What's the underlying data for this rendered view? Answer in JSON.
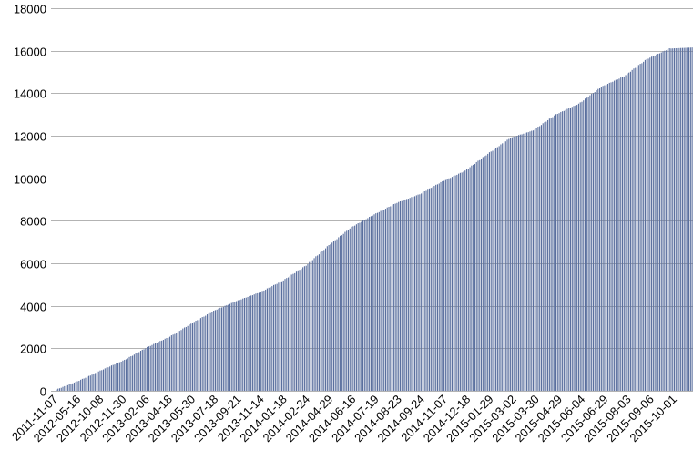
{
  "chart_data": {
    "type": "bar",
    "title": "",
    "xlabel": "",
    "ylabel": "",
    "ylim": [
      0,
      18000
    ],
    "yticks": [
      0,
      2000,
      4000,
      6000,
      8000,
      10000,
      12000,
      14000,
      16000,
      18000
    ],
    "grid": true,
    "legend": "none",
    "bar_color": "#5a6f9e",
    "grid_color": "#b3b3b3",
    "axis_color": "#b3b3b3",
    "tick_labels": [
      "2011-11-07",
      "2012-05-16",
      "2012-10-08",
      "2012-11-30",
      "2013-02-06",
      "2013-04-18",
      "2013-05-30",
      "2013-07-18",
      "2013-09-21",
      "2013-11-14",
      "2014-01-18",
      "2014-02-24",
      "2014-04-29",
      "2014-06-16",
      "2014-07-19",
      "2014-08-23",
      "2014-09-24",
      "2014-11-07",
      "2014-12-18",
      "2015-01-29",
      "2015-03-02",
      "2015-03-30",
      "2015-04-29",
      "2015-06-04",
      "2015-06-29",
      "2015-08-03",
      "2015-09-06",
      "2015-10-01"
    ],
    "series": [
      {
        "anchors": [
          {
            "index": 0,
            "value": 60
          },
          {
            "index": 14,
            "value": 480
          },
          {
            "index": 28,
            "value": 980
          },
          {
            "index": 42,
            "value": 1450
          },
          {
            "index": 56,
            "value": 2050
          },
          {
            "index": 70,
            "value": 2550
          },
          {
            "index": 84,
            "value": 3200
          },
          {
            "index": 98,
            "value": 3800
          },
          {
            "index": 112,
            "value": 4250
          },
          {
            "index": 126,
            "value": 4650
          },
          {
            "index": 140,
            "value": 5200
          },
          {
            "index": 154,
            "value": 5900
          },
          {
            "index": 168,
            "value": 6850
          },
          {
            "index": 182,
            "value": 7700
          },
          {
            "index": 196,
            "value": 8300
          },
          {
            "index": 210,
            "value": 8850
          },
          {
            "index": 224,
            "value": 9250
          },
          {
            "index": 238,
            "value": 9850
          },
          {
            "index": 252,
            "value": 10350
          },
          {
            "index": 266,
            "value": 11150
          },
          {
            "index": 280,
            "value": 11900
          },
          {
            "index": 294,
            "value": 12250
          },
          {
            "index": 308,
            "value": 13000
          },
          {
            "index": 322,
            "value": 13500
          },
          {
            "index": 336,
            "value": 14300
          },
          {
            "index": 350,
            "value": 14800
          },
          {
            "index": 364,
            "value": 15600
          },
          {
            "index": 378,
            "value": 16100
          },
          {
            "index": 392,
            "value": 16150
          }
        ]
      }
    ]
  }
}
